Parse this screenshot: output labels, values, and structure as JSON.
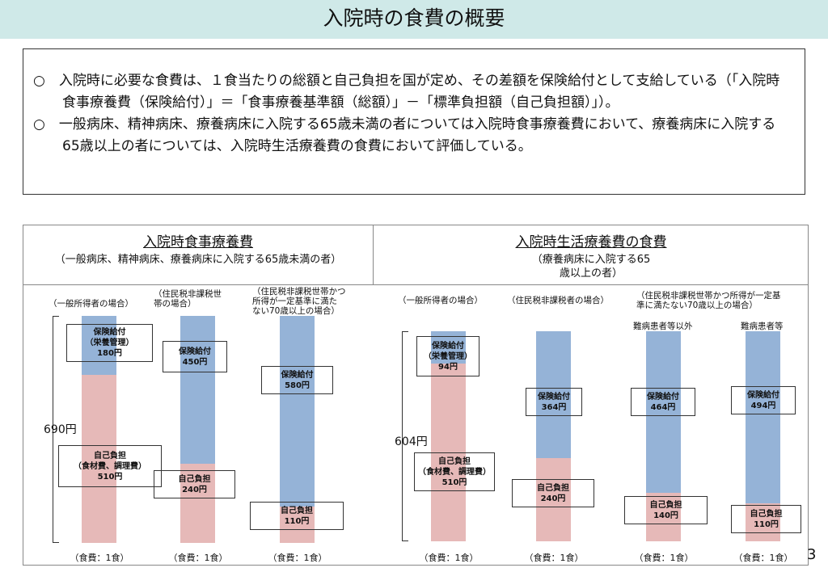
{
  "header": {
    "title": "入院時の食費の概要"
  },
  "summary": {
    "lines": [
      "○　入院時に必要な食費は、１食当たりの総額と自己負担を国が定め、その差額を保険給付として支給している（「入院時食事療養費（保険給付）」＝「食事療養基準額（総額）」－「標準負担額（自己負担額）」）。",
      "○　一般病床、精神病床、療養病床に入院する65歳未満の者については入院時食事療養費において、療養病床に入院する65歳以上の者については、入院時生活療養費の食費において評価している。"
    ]
  },
  "page_number": "3",
  "colors": {
    "insurance": "#95b3d7",
    "self_pay": "#e6b9b8",
    "header_bg": "#cfe9e8"
  },
  "chart_data": [
    {
      "type": "bar",
      "stacked": true,
      "title": "入院時食事療養費",
      "subtitle": "（一般病床、精神病床、療養病床に入院する65歳未満の者）",
      "total_label": "690円",
      "total": 690,
      "unit": "円",
      "categories": [
        "（一般所得者の場合）",
        "（住民税非課税世帯の場合）",
        "（住民税非課税世帯かつ所得が一定基準に満たない70歳以上の場合）"
      ],
      "category_lines": [
        [
          "（一般所得者の場合）"
        ],
        [
          "（住民税非課税世",
          "帯の場合）"
        ],
        [
          "（住民税非課税世帯かつ",
          "所得が一定基準に満た",
          "ない70歳以上の場合）"
        ]
      ],
      "x_label": "（食費：1食）",
      "series": [
        {
          "name": "自己負担",
          "values": [
            510,
            240,
            110
          ],
          "labels": [
            [
              "自己負担",
              "（食材費、調理費）",
              "510円"
            ],
            [
              "自己負担",
              "240円"
            ],
            [
              "自己負担",
              "110円"
            ]
          ]
        },
        {
          "name": "保険給付",
          "values": [
            180,
            450,
            580
          ],
          "labels": [
            [
              "保険給付",
              "（栄養管理）",
              "180円"
            ],
            [
              "保険給付",
              "450円"
            ],
            [
              "保険給付",
              "580円"
            ]
          ]
        }
      ]
    },
    {
      "type": "bar",
      "stacked": true,
      "title": "入院時生活療養費の食費",
      "subtitle": "（療養病床に入院する65歳以上の者）",
      "total_label": "604円",
      "total": 604,
      "unit": "円",
      "categories": [
        "（一般所得者の場合）",
        "（住民税非課税者の場合）",
        "難病患者等以外",
        "難病患者等"
      ],
      "group_label": [
        "（住民税非課税世帯かつ所得が一定基",
        "準に満たない70歳以上の場合）"
      ],
      "category_lines": [
        [
          "（一般所得者の場合）"
        ],
        [
          "（住民税非課税者の場合）"
        ],
        [
          "難病患者等以外"
        ],
        [
          "難病患者等"
        ]
      ],
      "x_label": "（食費：1食）",
      "series": [
        {
          "name": "自己負担",
          "values": [
            510,
            240,
            140,
            110
          ],
          "labels": [
            [
              "自己負担",
              "（食材費、調理費）",
              "510円"
            ],
            [
              "自己負担",
              "240円"
            ],
            [
              "自己負担",
              "140円"
            ],
            [
              "自己負担",
              "110円"
            ]
          ]
        },
        {
          "name": "保険給付",
          "values": [
            94,
            364,
            464,
            494
          ],
          "labels": [
            [
              "保険給付",
              "（栄養管理）",
              "94円"
            ],
            [
              "保険給付",
              "364円"
            ],
            [
              "保険給付",
              "464円"
            ],
            [
              "保険給付",
              "494円"
            ]
          ]
        }
      ]
    }
  ]
}
